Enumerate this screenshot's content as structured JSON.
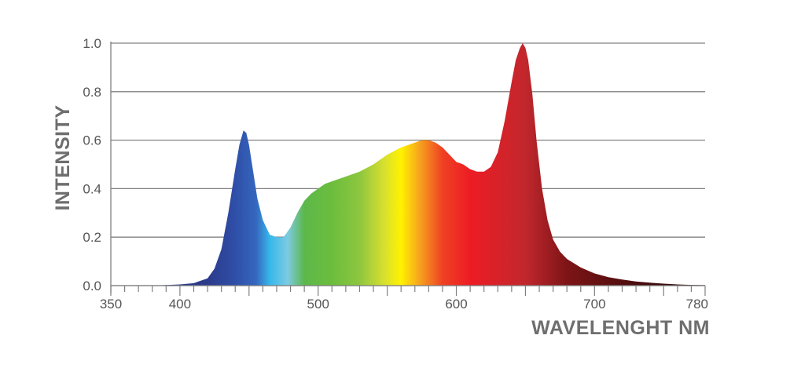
{
  "chart_data": {
    "type": "area",
    "title": "",
    "xlabel": "WAVELENGHT NM",
    "ylabel": "INTENSITY",
    "xlim": [
      350,
      780
    ],
    "ylim": [
      0,
      1.0
    ],
    "x_ticks": [
      350,
      400,
      500,
      600,
      700,
      780
    ],
    "y_ticks": [
      "0.0",
      "0.2",
      "0.4",
      "0.6",
      "0.8",
      "1.0"
    ],
    "grid": "horizontal",
    "legend": "none",
    "fill": "visible spectrum gradient",
    "series": [
      {
        "x": [
          380,
          400,
          410,
          420,
          425,
          430,
          435,
          440,
          443,
          446,
          448,
          450,
          453,
          456,
          460,
          465,
          470,
          475,
          480,
          485,
          490,
          495,
          500,
          505,
          510,
          520,
          530,
          540,
          550,
          560,
          570,
          575,
          580,
          585,
          590,
          595,
          600,
          605,
          610,
          615,
          620,
          625,
          630,
          635,
          640,
          643,
          646,
          648,
          650,
          652,
          655,
          658,
          662,
          666,
          670,
          675,
          680,
          690,
          700,
          710,
          720,
          730,
          740,
          750,
          760,
          770,
          780
        ],
        "values": [
          0.0,
          0.005,
          0.01,
          0.03,
          0.07,
          0.15,
          0.3,
          0.48,
          0.58,
          0.64,
          0.63,
          0.58,
          0.47,
          0.36,
          0.27,
          0.21,
          0.2,
          0.2,
          0.24,
          0.3,
          0.35,
          0.38,
          0.4,
          0.42,
          0.43,
          0.45,
          0.47,
          0.5,
          0.54,
          0.57,
          0.59,
          0.6,
          0.6,
          0.59,
          0.57,
          0.54,
          0.51,
          0.5,
          0.48,
          0.47,
          0.47,
          0.49,
          0.55,
          0.68,
          0.84,
          0.93,
          0.98,
          1.0,
          0.98,
          0.93,
          0.79,
          0.6,
          0.4,
          0.27,
          0.19,
          0.14,
          0.11,
          0.075,
          0.05,
          0.035,
          0.025,
          0.017,
          0.012,
          0.008,
          0.005,
          0.003,
          0.002
        ]
      }
    ],
    "colors": {
      "grid": "#808080",
      "axis": "#808080",
      "spectrum_stops": [
        {
          "x": 420,
          "color": "#2c3a8a"
        },
        {
          "x": 440,
          "color": "#2f4fa8"
        },
        {
          "x": 455,
          "color": "#3566be"
        },
        {
          "x": 465,
          "color": "#36b7ea"
        },
        {
          "x": 478,
          "color": "#7dcbe3"
        },
        {
          "x": 490,
          "color": "#5cb84a"
        },
        {
          "x": 510,
          "color": "#6cbd3d"
        },
        {
          "x": 530,
          "color": "#8dc63f"
        },
        {
          "x": 548,
          "color": "#d8e02f"
        },
        {
          "x": 560,
          "color": "#fff200"
        },
        {
          "x": 573,
          "color": "#f7a51e"
        },
        {
          "x": 590,
          "color": "#ef4123"
        },
        {
          "x": 610,
          "color": "#ed1c24"
        },
        {
          "x": 650,
          "color": "#c1272d"
        },
        {
          "x": 680,
          "color": "#7d1416"
        },
        {
          "x": 730,
          "color": "#4a0d0e"
        },
        {
          "x": 780,
          "color": "#2a0808"
        }
      ]
    }
  }
}
